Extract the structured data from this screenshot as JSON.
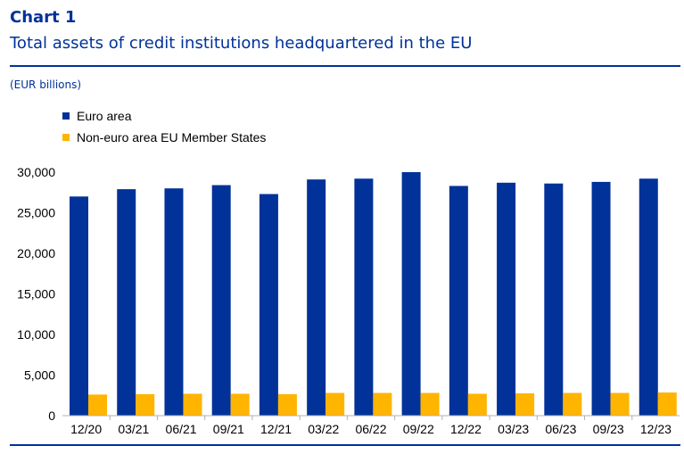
{
  "header": {
    "label": "Chart 1",
    "title": "Total assets of credit institutions headquartered in the EU",
    "units": "(EUR billions)"
  },
  "colors": {
    "euro_area": "#003299",
    "non_euro": "#FFB400",
    "rule": "#003299"
  },
  "chart_data": {
    "type": "bar",
    "title": "Total assets of credit institutions headquartered in the EU",
    "ylabel": "(EUR billions)",
    "xlabel": "",
    "ylim": [
      0,
      30000
    ],
    "yticks": [
      0,
      5000,
      10000,
      15000,
      20000,
      25000,
      30000
    ],
    "ytick_labels": [
      "0",
      "5,000",
      "10,000",
      "15,000",
      "20,000",
      "25,000",
      "30,000"
    ],
    "grid": false,
    "legend_position": "top-left",
    "categories": [
      "12/20",
      "03/21",
      "06/21",
      "09/21",
      "12/21",
      "03/22",
      "06/22",
      "09/22",
      "12/22",
      "03/23",
      "06/23",
      "09/23",
      "12/23"
    ],
    "series": [
      {
        "name": "Euro area",
        "values": [
          27000,
          27900,
          28000,
          28400,
          27300,
          29100,
          29200,
          30000,
          28300,
          28700,
          28600,
          28800,
          29200
        ]
      },
      {
        "name": "Non-euro area EU Member States",
        "values": [
          2600,
          2650,
          2700,
          2700,
          2650,
          2800,
          2800,
          2800,
          2700,
          2750,
          2800,
          2800,
          2850
        ]
      }
    ]
  }
}
